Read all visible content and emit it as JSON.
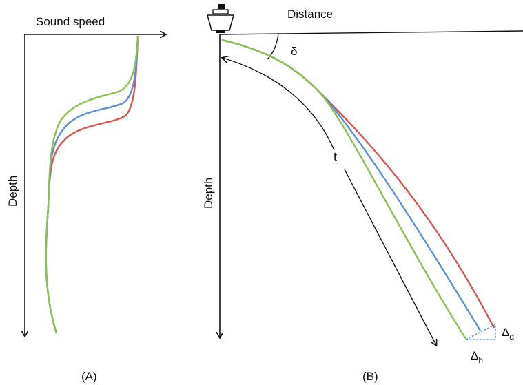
{
  "panel_a": {
    "x_axis_label": "Sound speed",
    "y_axis_label": "Depth",
    "caption": "(A)"
  },
  "panel_b": {
    "x_axis_label": "Distance",
    "y_axis_label": "Depth",
    "angle_label": "δ",
    "time_label": "t",
    "delta_d_base": "Δ",
    "delta_d_sub": "d",
    "delta_h_base": "Δ",
    "delta_h_sub": "h",
    "caption": "(B)"
  },
  "colors": {
    "red": "#d9534f",
    "blue": "#5b8fd6",
    "green": "#8cc152",
    "axis": "#111111"
  }
}
